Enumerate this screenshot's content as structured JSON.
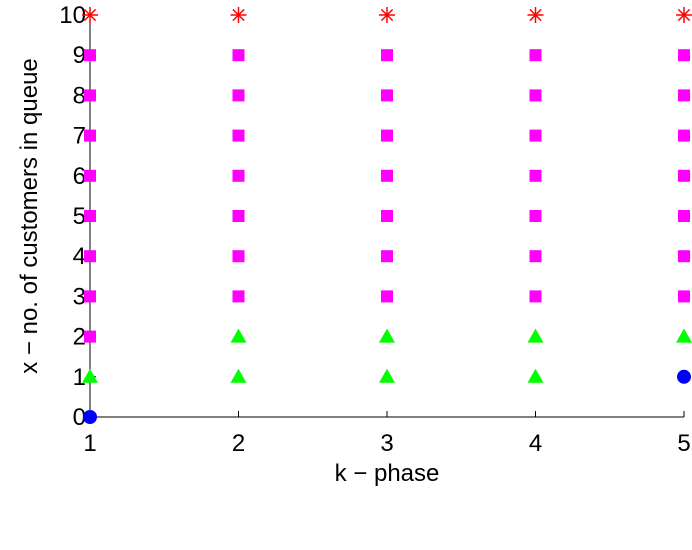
{
  "chart_data": {
    "type": "scatter",
    "title": "",
    "xlabel": "k − phase",
    "ylabel": "x − no. of customers in queue",
    "xlim": [
      1,
      5
    ],
    "ylim": [
      0,
      10
    ],
    "xticks": [
      "1",
      "2",
      "3",
      "4",
      "5"
    ],
    "yticks": [
      "0",
      "1",
      "2",
      "3",
      "4",
      "5",
      "6",
      "7",
      "8",
      "9",
      "10"
    ],
    "grid": false,
    "legend": "none",
    "series": [
      {
        "marker": "circle",
        "color": "#0000ff",
        "points": [
          [
            1,
            0
          ],
          [
            5,
            1
          ]
        ]
      },
      {
        "marker": "triangle",
        "color": "#00ff00",
        "points": [
          [
            1,
            1
          ],
          [
            2,
            1
          ],
          [
            3,
            1
          ],
          [
            4,
            1
          ],
          [
            2,
            2
          ],
          [
            3,
            2
          ],
          [
            4,
            2
          ],
          [
            5,
            2
          ]
        ]
      },
      {
        "marker": "square",
        "color": "#ff00ff",
        "points": [
          [
            1,
            2
          ],
          [
            1,
            3
          ],
          [
            1,
            4
          ],
          [
            1,
            5
          ],
          [
            1,
            6
          ],
          [
            1,
            7
          ],
          [
            1,
            8
          ],
          [
            1,
            9
          ],
          [
            2,
            3
          ],
          [
            2,
            4
          ],
          [
            2,
            5
          ],
          [
            2,
            6
          ],
          [
            2,
            7
          ],
          [
            2,
            8
          ],
          [
            2,
            9
          ],
          [
            3,
            3
          ],
          [
            3,
            4
          ],
          [
            3,
            5
          ],
          [
            3,
            6
          ],
          [
            3,
            7
          ],
          [
            3,
            8
          ],
          [
            3,
            9
          ],
          [
            4,
            3
          ],
          [
            4,
            4
          ],
          [
            4,
            5
          ],
          [
            4,
            6
          ],
          [
            4,
            7
          ],
          [
            4,
            8
          ],
          [
            4,
            9
          ],
          [
            5,
            3
          ],
          [
            5,
            4
          ],
          [
            5,
            5
          ],
          [
            5,
            6
          ],
          [
            5,
            7
          ],
          [
            5,
            8
          ],
          [
            5,
            9
          ]
        ]
      },
      {
        "marker": "asterisk",
        "color": "#ff0000",
        "points": [
          [
            1,
            10
          ],
          [
            2,
            10
          ],
          [
            3,
            10
          ],
          [
            4,
            10
          ],
          [
            5,
            10
          ]
        ]
      }
    ]
  }
}
